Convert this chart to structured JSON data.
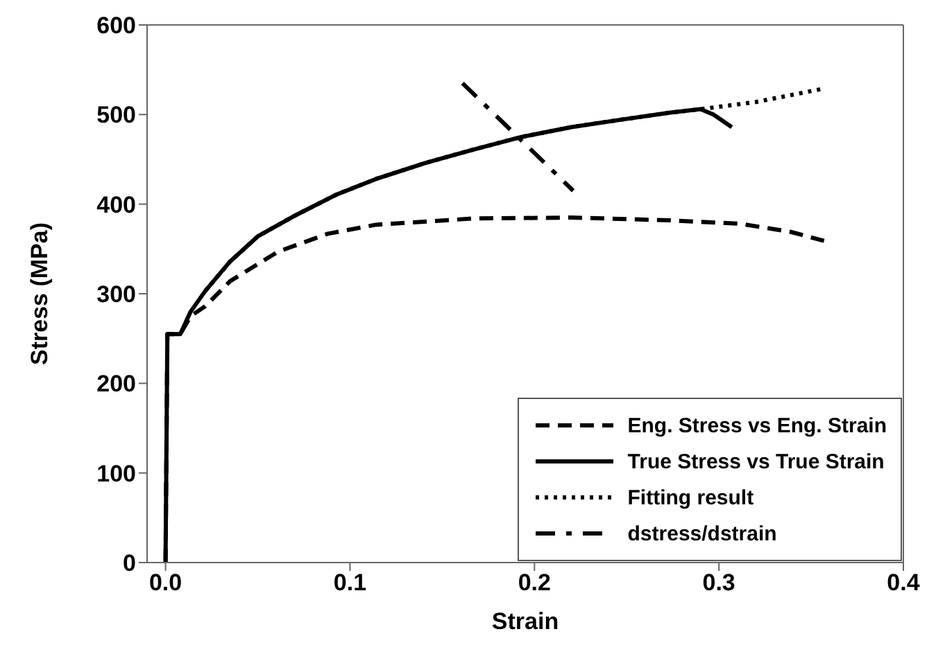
{
  "chart_data": {
    "type": "line",
    "xlabel": "Strain",
    "ylabel": "Stress (MPa)",
    "xlim": [
      -0.01,
      0.4
    ],
    "xticks": [
      {
        "value": 0,
        "label": "0.0"
      },
      0.1,
      0.2,
      0.3,
      0.4
    ],
    "ylim": [
      0,
      600
    ],
    "yticks": [
      0,
      100,
      200,
      300,
      400,
      500,
      600
    ],
    "legend": "bottom right",
    "marker": "none",
    "series": [
      {
        "name": "Eng. Stress vs Eng. Strain",
        "color": "#000000",
        "line_style": "dashed",
        "x": [
          0,
          0.001,
          0.008,
          0.0136,
          0.0215,
          0.035,
          0.061,
          0.088,
          0.114,
          0.167,
          0.22,
          0.273,
          0.312,
          0.339,
          0.357
        ],
        "values": [
          0,
          255,
          255,
          275,
          286,
          314,
          347,
          367,
          377,
          384,
          385,
          382,
          378,
          369,
          359
        ]
      },
      {
        "name": "True Stress vs True Strain",
        "color": "#000000",
        "line_style": "solid",
        "x": [
          0,
          0.001,
          0.008,
          0.0136,
          0.0215,
          0.035,
          0.05,
          0.069,
          0.093,
          0.114,
          0.141,
          0.167,
          0.193,
          0.22,
          0.246,
          0.273,
          0.29,
          0.297,
          0.307
        ],
        "values": [
          0,
          255,
          255,
          280,
          303,
          336,
          364,
          386,
          411,
          428,
          446,
          461,
          475,
          486,
          494,
          502,
          506,
          500,
          486
        ]
      },
      {
        "name": "Fitting result",
        "color": "#000000",
        "line_style": "dotted",
        "x": [
          0.0215,
          0.035,
          0.05,
          0.069,
          0.093,
          0.114,
          0.141,
          0.167,
          0.193,
          0.22,
          0.246,
          0.273,
          0.29,
          0.32,
          0.357
        ],
        "values": [
          303,
          336,
          364,
          386,
          411,
          428,
          446,
          461,
          475,
          486,
          494,
          502,
          506,
          514,
          529
        ]
      },
      {
        "name": "dstress/dstrain",
        "color": "#000000",
        "line_style": "dashdot",
        "x": [
          0.161,
          0.221
        ],
        "values": [
          535,
          415
        ]
      }
    ]
  }
}
